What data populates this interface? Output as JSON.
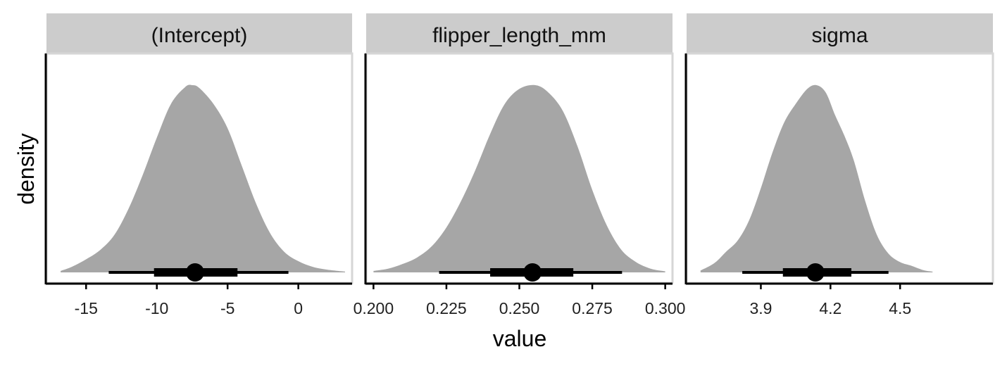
{
  "figure": {
    "xlabel": "value",
    "ylabel": "density"
  },
  "chart_data": [
    {
      "type": "area",
      "title": "(Intercept)",
      "xlim": [
        -17.8,
        3.8
      ],
      "ticks": [
        -15,
        -10,
        -5,
        0
      ],
      "tick_labels": [
        "-15",
        "-10",
        "-5",
        "0"
      ],
      "fill_color": "#a6a6a6",
      "density": {
        "x": [
          -16.8,
          -16,
          -15,
          -14,
          -13,
          -12,
          -11,
          -10,
          -9,
          -8,
          -7.5,
          -7,
          -6,
          -5,
          -4,
          -3,
          -2,
          -1,
          0,
          1,
          2,
          3.3
        ],
        "y": [
          0.008,
          0.03,
          0.07,
          0.12,
          0.2,
          0.34,
          0.52,
          0.72,
          0.9,
          0.99,
          1.0,
          0.985,
          0.9,
          0.77,
          0.57,
          0.37,
          0.21,
          0.11,
          0.06,
          0.03,
          0.015,
          0.004
        ]
      },
      "point": -7.3,
      "interval_66": [
        -10.2,
        -4.3
      ],
      "interval_95": [
        -13.4,
        -0.7
      ]
    },
    {
      "type": "area",
      "title": "flipper_length_mm",
      "xlim": [
        0.1975,
        0.3025
      ],
      "ticks": [
        0.2,
        0.225,
        0.25,
        0.275,
        0.3
      ],
      "tick_labels": [
        "0.200",
        "0.225",
        "0.250",
        "0.275",
        "0.300"
      ],
      "fill_color": "#a6a6a6",
      "density": {
        "x": [
          0.2,
          0.205,
          0.21,
          0.215,
          0.22,
          0.225,
          0.23,
          0.235,
          0.24,
          0.245,
          0.25,
          0.2555,
          0.26,
          0.265,
          0.27,
          0.275,
          0.28,
          0.285,
          0.29,
          0.295,
          0.3
        ],
        "y": [
          0.008,
          0.02,
          0.045,
          0.08,
          0.14,
          0.24,
          0.38,
          0.55,
          0.74,
          0.9,
          0.98,
          1.0,
          0.96,
          0.86,
          0.67,
          0.44,
          0.25,
          0.12,
          0.055,
          0.02,
          0.006
        ]
      },
      "point": 0.2545,
      "interval_66": [
        0.24,
        0.2685
      ],
      "interval_95": [
        0.2225,
        0.2852
      ]
    },
    {
      "type": "area",
      "title": "sigma",
      "xlim": [
        3.58,
        4.9
      ],
      "ticks": [
        3.9,
        4.2,
        4.5
      ],
      "tick_labels": [
        "3.9",
        "4.2",
        "4.5"
      ],
      "fill_color": "#a6a6a6",
      "density": {
        "x": [
          3.64,
          3.7,
          3.75,
          3.8,
          3.85,
          3.9,
          3.95,
          4.0,
          4.05,
          4.1,
          4.14,
          4.18,
          4.22,
          4.26,
          4.3,
          4.35,
          4.4,
          4.45,
          4.5,
          4.55,
          4.6,
          4.64
        ],
        "y": [
          0.01,
          0.05,
          0.11,
          0.17,
          0.28,
          0.45,
          0.64,
          0.8,
          0.9,
          0.98,
          1.0,
          0.96,
          0.84,
          0.73,
          0.6,
          0.38,
          0.2,
          0.1,
          0.055,
          0.035,
          0.012,
          0.004
        ]
      },
      "point": 4.135,
      "interval_66": [
        3.995,
        4.29
      ],
      "interval_95": [
        3.82,
        4.45
      ]
    }
  ]
}
